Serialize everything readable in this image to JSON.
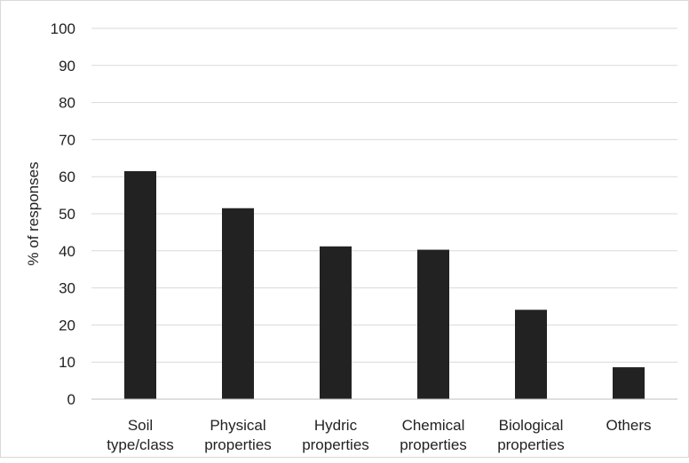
{
  "chart_data": {
    "type": "bar",
    "title": "",
    "xlabel": "",
    "ylabel": "% of responses",
    "categories": [
      [
        "Soil",
        "type/class"
      ],
      [
        "Physical",
        "properties"
      ],
      [
        "Hydric",
        "properties"
      ],
      [
        "Chemical",
        "properties"
      ],
      [
        "Biological",
        "properties"
      ],
      [
        "Others"
      ]
    ],
    "values": [
      61.5,
      51.5,
      41.2,
      40.3,
      24.1,
      8.6
    ],
    "ylim": [
      0,
      100
    ],
    "yticks": [
      0,
      10,
      20,
      30,
      40,
      50,
      60,
      70,
      80,
      90,
      100
    ],
    "grid": true,
    "legend": "none",
    "colors": {
      "bar": "#222222",
      "grid": "#d9d9d9",
      "axis": "#bfbfbf"
    }
  }
}
